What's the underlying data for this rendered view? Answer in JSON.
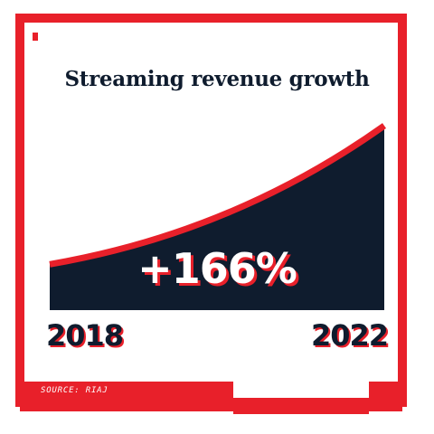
{
  "colors": {
    "accent": "#e8202a",
    "dark": "#0f1c2e",
    "background": "#ffffff"
  },
  "chart_data": {
    "type": "area",
    "title": "Streaming revenue growth",
    "x": [
      "2018",
      "2022"
    ],
    "xlabel": "",
    "ylabel": "",
    "series": [
      {
        "values": [
          100,
          266
        ]
      }
    ],
    "annotation": "+166%",
    "grid": false,
    "source": "SOURCE: RIAJ"
  }
}
